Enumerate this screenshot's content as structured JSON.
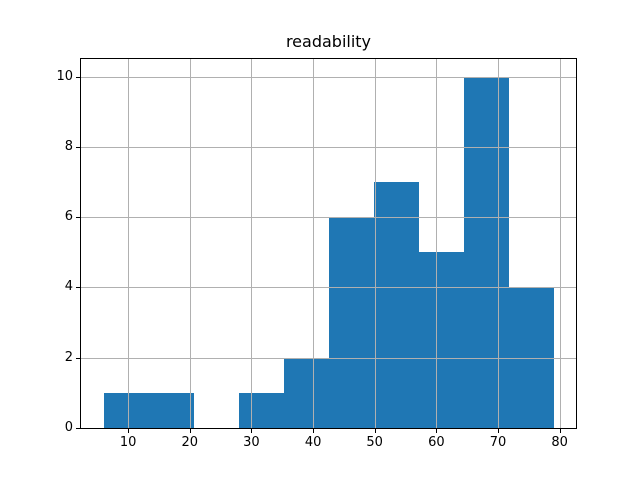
{
  "figure": {
    "background_color": "#ffffff"
  },
  "chart_data": {
    "type": "bar",
    "chart_kind": "histogram",
    "title": "readability",
    "xlabel": "",
    "ylabel": "",
    "bin_edges": [
      6.0,
      13.3,
      20.6,
      27.9,
      35.2,
      42.5,
      49.8,
      57.1,
      64.4,
      71.7,
      79.0
    ],
    "counts": [
      1,
      1,
      0,
      1,
      2,
      6,
      7,
      5,
      10,
      4
    ],
    "xticks": [
      10,
      20,
      30,
      40,
      50,
      60,
      70,
      80
    ],
    "yticks": [
      0,
      2,
      4,
      6,
      8,
      10
    ],
    "xlim": [
      2.35,
      82.65
    ],
    "ylim": [
      0,
      10.5
    ],
    "grid": true,
    "legend_position": "none",
    "bar_color": "#1f77b4",
    "grid_color": "#b0b0b0",
    "spine_color": "#000000",
    "text_color": "#000000"
  }
}
